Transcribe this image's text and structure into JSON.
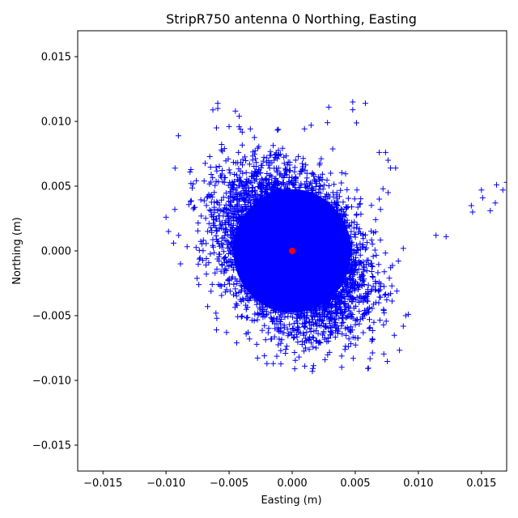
{
  "chart_data": {
    "type": "scatter",
    "title": "StripR750 antenna 0 Northing, Easting",
    "xlabel": "Easting (m)",
    "ylabel": "Northing (m)",
    "xlim": [
      -0.017,
      0.017
    ],
    "ylim": [
      -0.017,
      0.017
    ],
    "xticks": [
      "-0.015",
      "-0.010",
      "-0.005",
      "0.000",
      "0.005",
      "0.010",
      "0.015"
    ],
    "yticks": [
      "-0.015",
      "-0.010",
      "-0.005",
      "0.000",
      "0.005",
      "0.010",
      "0.015"
    ],
    "xtick_values": [
      -0.015,
      -0.01,
      -0.005,
      0.0,
      0.005,
      0.01,
      0.015
    ],
    "ytick_values": [
      -0.015,
      -0.01,
      -0.005,
      0.0,
      0.005,
      0.01,
      0.015
    ],
    "grid": false,
    "series": [
      {
        "marker": "plus",
        "color": "#0000ff",
        "cluster": {
          "center": [
            0.0,
            0.0
          ],
          "approx_extent_x": [
            -0.01,
            0.0092
          ],
          "approx_extent_y": [
            -0.0092,
            0.0115
          ]
        },
        "points": [
          [
            0.0,
            0.0
          ],
          [
            -0.0059,
            0.0114
          ],
          [
            -0.0059,
            0.011
          ],
          [
            -0.0045,
            0.0108
          ],
          [
            -0.0042,
            0.0104
          ],
          [
            0.0048,
            0.0115
          ],
          [
            0.0058,
            0.0114
          ],
          [
            0.0048,
            0.0109
          ],
          [
            0.0029,
            0.0111
          ],
          [
            -0.006,
            0.0095
          ],
          [
            -0.005,
            0.0096
          ],
          [
            -0.0041,
            0.0094
          ],
          [
            0.0015,
            0.0097
          ],
          [
            0.0028,
            0.0099
          ],
          [
            -0.01,
            0.0026
          ],
          [
            -0.0098,
            0.0015
          ],
          [
            -0.0093,
            0.0032
          ],
          [
            -0.009,
            0.0012
          ],
          [
            -0.0094,
            0.0006
          ],
          [
            0.0069,
            0.0076
          ],
          [
            0.0074,
            0.0076
          ],
          [
            0.0076,
            0.007
          ],
          [
            0.0078,
            0.0064
          ],
          [
            0.0082,
            0.0064
          ],
          [
            0.0072,
            0.0048
          ],
          [
            0.0069,
            0.004
          ],
          [
            0.007,
            0.0032
          ],
          [
            0.0076,
            0.0045
          ],
          [
            0.0078,
            -0.0013
          ],
          [
            0.0077,
            -0.0021
          ],
          [
            0.0079,
            -0.0027
          ],
          [
            0.0083,
            -0.0031
          ],
          [
            0.0078,
            -0.0033
          ],
          [
            0.009,
            -0.005
          ],
          [
            0.0092,
            -0.0049
          ],
          [
            0.0114,
            0.0012
          ],
          [
            0.0122,
            0.0011
          ],
          [
            0.0142,
            0.0035
          ],
          [
            0.0143,
            0.003
          ],
          [
            0.015,
            0.0047
          ],
          [
            0.0151,
            0.0041
          ],
          [
            0.0157,
            0.0031
          ],
          [
            0.0161,
            0.0037
          ],
          [
            0.0162,
            0.0051
          ],
          [
            0.0167,
            0.0047
          ],
          [
            0.017,
            0.0053
          ],
          [
            -0.002,
            -0.0087
          ],
          [
            -0.0015,
            -0.0087
          ],
          [
            0.0002,
            -0.0091
          ],
          [
            0.001,
            -0.0089
          ],
          [
            0.0016,
            -0.0093
          ],
          [
            0.0026,
            -0.0084
          ],
          [
            -0.0022,
            -0.0081
          ],
          [
            0.0045,
            -0.0068
          ],
          [
            0.0054,
            -0.0053
          ],
          [
            0.0059,
            -0.0046
          ],
          [
            -0.0074,
            -0.0026
          ],
          [
            -0.0067,
            -0.0043
          ],
          [
            -0.006,
            -0.0061
          ],
          [
            -0.0044,
            -0.0071
          ],
          [
            -0.0052,
            -0.0063
          ]
        ]
      },
      {
        "marker": "circle",
        "color": "#ff0000",
        "points": [
          [
            0.0,
            0.0
          ]
        ]
      }
    ]
  }
}
